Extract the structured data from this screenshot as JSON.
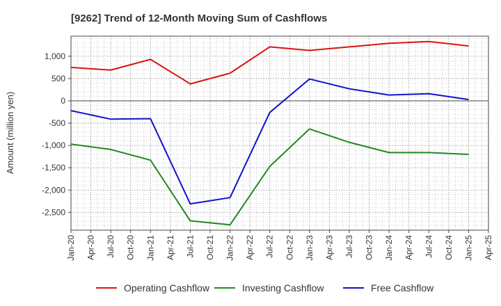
{
  "chart_data": {
    "type": "line",
    "title": "[9262]  Trend of 12-Month Moving Sum of Cashflows",
    "xlabel": "",
    "ylabel": "Amount (million yen)",
    "ylim": [
      -2900,
      1450
    ],
    "grid": true,
    "legend_position": "bottom",
    "x_ticks": [
      "Jan-20",
      "Apr-20",
      "Jul-20",
      "Oct-20",
      "Jan-21",
      "Apr-21",
      "Jul-21",
      "Oct-21",
      "Jan-22",
      "Apr-22",
      "Jul-22",
      "Oct-22",
      "Jan-23",
      "Apr-23",
      "Jul-23",
      "Oct-23",
      "Jan-24",
      "Apr-24",
      "Jul-24",
      "Oct-24",
      "Jan-25",
      "Apr-25"
    ],
    "y_ticks": [
      1000,
      500,
      0,
      -500,
      -1000,
      -1500,
      -2000,
      -2500
    ],
    "y_tick_labels": [
      "1,000",
      "500",
      "0",
      "-500",
      "-1,000",
      "-1,500",
      "-2,000",
      "-2,500"
    ],
    "x": [
      "Jan-20",
      "Jul-20",
      "Jan-21",
      "Jul-21",
      "Jan-22",
      "Jul-22",
      "Jan-23",
      "Jul-23",
      "Jan-24",
      "Jul-24",
      "Jan-25"
    ],
    "series": [
      {
        "name": "Operating Cashflow",
        "color": "#dd1111",
        "values": [
          750,
          690,
          930,
          380,
          620,
          1210,
          1130,
          1210,
          1290,
          1330,
          1230
        ]
      },
      {
        "name": "Investing Cashflow",
        "color": "#228822",
        "values": [
          -970,
          -1090,
          -1330,
          -2690,
          -2780,
          -1470,
          -630,
          -930,
          -1160,
          -1160,
          -1200
        ]
      },
      {
        "name": "Free Cashflow",
        "color": "#1111cc",
        "values": [
          -220,
          -410,
          -400,
          -2310,
          -2170,
          -260,
          490,
          270,
          130,
          160,
          30
        ]
      }
    ]
  }
}
